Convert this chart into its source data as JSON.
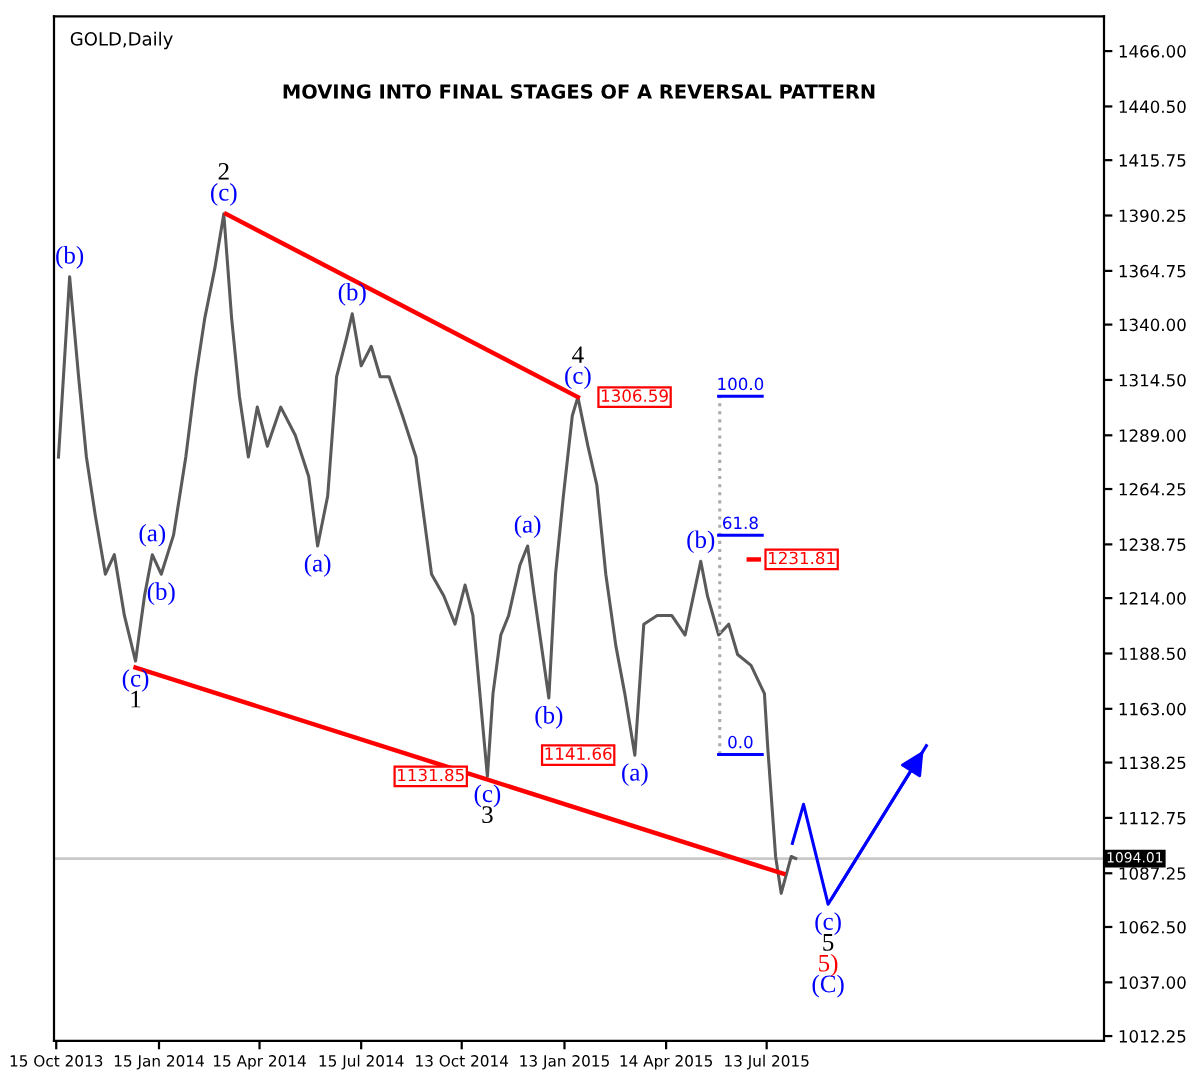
{
  "chart_data": {
    "type": "line",
    "title": "MOVING INTO FINAL STAGES OF A REVERSAL PATTERN",
    "subtitle": "GOLD,Daily",
    "xlim": [
      "2013-10-13",
      "2016-05-10"
    ],
    "ylim": [
      1010,
      1482
    ],
    "xticks": [
      {
        "value": "2013-10-15",
        "label": "15 Oct 2013"
      },
      {
        "value": "2014-01-15",
        "label": "15 Jan 2014"
      },
      {
        "value": "2014-04-15",
        "label": "15 Apr 2014"
      },
      {
        "value": "2014-07-15",
        "label": "15 Jul 2014"
      },
      {
        "value": "2014-10-13",
        "label": "13 Oct 2014"
      },
      {
        "value": "2015-01-13",
        "label": "13 Jan 2015"
      },
      {
        "value": "2015-04-14",
        "label": "14 Apr 2015"
      },
      {
        "value": "2015-07-13",
        "label": "13 Jul 2015"
      }
    ],
    "yticks": [
      {
        "value": 1466.0,
        "label": "1466.00"
      },
      {
        "value": 1440.5,
        "label": "1440.50"
      },
      {
        "value": 1415.75,
        "label": "1415.75"
      },
      {
        "value": 1390.25,
        "label": "1390.25"
      },
      {
        "value": 1364.75,
        "label": "1364.75"
      },
      {
        "value": 1340.0,
        "label": "1340.00"
      },
      {
        "value": 1314.5,
        "label": "1314.50"
      },
      {
        "value": 1289.0,
        "label": "1289.00"
      },
      {
        "value": 1264.25,
        "label": "1264.25"
      },
      {
        "value": 1238.75,
        "label": "1238.75"
      },
      {
        "value": 1214.0,
        "label": "1214.00"
      },
      {
        "value": 1188.5,
        "label": "1188.50"
      },
      {
        "value": 1163.0,
        "label": "1163.00"
      },
      {
        "value": 1138.25,
        "label": "1138.25"
      },
      {
        "value": 1112.75,
        "label": "1112.75"
      },
      {
        "value": 1087.25,
        "label": "1087.25"
      },
      {
        "value": 1062.5,
        "label": "1062.50"
      },
      {
        "value": 1037.0,
        "label": "1037.00"
      },
      {
        "value": 1012.25,
        "label": "1012.25"
      }
    ],
    "grid": false,
    "legend": false,
    "series": [
      {
        "color": "#5a5a5a",
        "x": [
          "2013-10-17",
          "2013-10-27",
          "2013-11-04",
          "2013-11-11",
          "2013-11-19",
          "2013-11-28",
          "2013-12-06",
          "2013-12-15",
          "2013-12-25",
          "2014-01-02",
          "2014-01-09",
          "2014-01-17",
          "2014-01-28",
          "2014-02-08",
          "2014-02-17",
          "2014-02-25",
          "2014-03-06",
          "2014-03-14",
          "2014-03-21",
          "2014-03-28",
          "2014-04-05",
          "2014-04-13",
          "2014-04-22",
          "2014-05-04",
          "2014-05-17",
          "2014-05-29",
          "2014-06-06",
          "2014-06-15",
          "2014-06-23",
          "2014-07-02",
          "2014-07-07",
          "2014-07-15",
          "2014-07-24",
          "2014-08-01",
          "2014-08-09",
          "2014-08-21",
          "2014-09-02",
          "2014-09-16",
          "2014-09-27",
          "2014-10-07",
          "2014-10-16",
          "2014-10-23",
          "2014-10-31",
          "2014-11-05",
          "2014-11-10",
          "2014-11-17",
          "2014-11-24",
          "2014-12-04",
          "2014-12-11",
          "2014-12-17",
          "2014-12-30",
          "2015-01-05",
          "2015-01-12",
          "2015-01-20",
          "2015-01-25",
          "2015-02-03",
          "2015-02-11",
          "2015-02-19",
          "2015-02-28",
          "2015-03-08",
          "2015-03-17",
          "2015-03-25",
          "2015-04-06",
          "2015-04-19",
          "2015-05-01",
          "2015-05-15",
          "2015-05-21",
          "2015-05-31",
          "2015-06-09",
          "2015-06-17",
          "2015-06-29",
          "2015-07-11",
          "2015-07-14",
          "2015-07-21",
          "2015-07-26",
          "2015-08-04",
          "2015-08-08"
        ],
        "values": [
          1279,
          1362,
          1316,
          1279,
          1252,
          1225,
          1234,
          1206,
          1185,
          1215,
          1234,
          1225,
          1243,
          1279,
          1316,
          1343,
          1366,
          1391,
          1343,
          1307,
          1279,
          1302,
          1284,
          1302,
          1289,
          1270,
          1238,
          1261,
          1316,
          1334,
          1345,
          1321,
          1330,
          1316,
          1316,
          1298,
          1279,
          1225,
          1215,
          1202,
          1220,
          1206,
          1160,
          1131.85,
          1170,
          1197,
          1206,
          1229,
          1238,
          1215,
          1168,
          1225,
          1261,
          1298,
          1306.59,
          1284,
          1266,
          1225,
          1192,
          1170,
          1141.66,
          1202,
          1206,
          1206,
          1197,
          1231,
          1215,
          1197,
          1202,
          1188,
          1183,
          1170,
          1145,
          1095,
          1078,
          1095,
          1094.01
        ]
      },
      {
        "color": "#ff0000",
        "x": [
          "2014-03-16",
          "2015-01-25"
        ],
        "values": [
          1391,
          1306.59
        ]
      },
      {
        "color": "#ff0000",
        "x": [
          "2013-12-25",
          "2015-07-28"
        ],
        "values": [
          1182,
          1087
        ]
      },
      {
        "color": "#0000ff",
        "x": [
          "2015-08-05",
          "2015-08-15",
          "2015-09-06",
          "2015-12-03"
        ],
        "values": [
          1101,
          1119,
          1073,
          1146
        ]
      },
      {
        "color": "#aaaaaa",
        "line_style": "dotted",
        "x": [
          "2015-06-01",
          "2015-06-01"
        ],
        "values": [
          1142,
          1307
        ]
      },
      {
        "name": "100.0",
        "color": "#0000ff",
        "x": [
          "2015-05-31",
          "2015-07-09"
        ],
        "values": [
          1307,
          1307
        ]
      },
      {
        "name": "61.8",
        "color": "#0000ff",
        "x": [
          "2015-05-31",
          "2015-07-09"
        ],
        "values": [
          1243,
          1243
        ]
      },
      {
        "name": "0.0",
        "color": "#0000ff",
        "x": [
          "2015-05-31",
          "2015-07-09"
        ],
        "values": [
          1142,
          1142
        ]
      },
      {
        "name": "1231.81",
        "color": "#ff0000",
        "x": [
          "2015-06-27",
          "2015-07-06"
        ],
        "values": [
          1231.81,
          1231.81
        ]
      }
    ],
    "ref_lines": [
      {
        "axis": "y",
        "value": 1094.01,
        "label": "1094.01",
        "color": "#c8c8c8"
      }
    ],
    "annotations": [
      {
        "text": "(b)",
        "x": "2013-10-27",
        "y": 1362
      },
      {
        "text": "(c)",
        "x": "2013-12-25",
        "y": 1185
      },
      {
        "text": "1",
        "x": "2013-12-25",
        "y": 1185
      },
      {
        "text": "(a)",
        "x": "2014-01-09",
        "y": 1234
      },
      {
        "text": "(b)",
        "x": "2014-01-17",
        "y": 1225
      },
      {
        "text": "(c)",
        "x": "2014-03-14",
        "y": 1391
      },
      {
        "text": "2",
        "x": "2014-03-14",
        "y": 1391
      },
      {
        "text": "(a)",
        "x": "2014-06-06",
        "y": 1238
      },
      {
        "text": "(b)",
        "x": "2014-07-07",
        "y": 1345
      },
      {
        "text": "(c)",
        "x": "2014-11-05",
        "y": 1131.85
      },
      {
        "text": "3",
        "x": "2014-11-05",
        "y": 1131.85
      },
      {
        "text": "1131.85",
        "x": "2014-11-05",
        "y": 1131.85
      },
      {
        "text": "(a)",
        "x": "2014-12-11",
        "y": 1238
      },
      {
        "text": "(b)",
        "x": "2014-12-30",
        "y": 1168
      },
      {
        "text": "(c)",
        "x": "2015-01-25",
        "y": 1306.59
      },
      {
        "text": "4",
        "x": "2015-01-25",
        "y": 1306.59
      },
      {
        "text": "1306.59",
        "x": "2015-01-25",
        "y": 1306.59
      },
      {
        "text": "(a)",
        "x": "2015-03-17",
        "y": 1141.66
      },
      {
        "text": "1141.66",
        "x": "2015-03-17",
        "y": 1141.66
      },
      {
        "text": "(b)",
        "x": "2015-05-15",
        "y": 1231
      },
      {
        "text": "(c)",
        "x": "2015-09-06",
        "y": 1073
      },
      {
        "text": "5",
        "x": "2015-09-06",
        "y": 1073
      },
      {
        "text": "5)",
        "x": "2015-09-06",
        "y": 1073
      },
      {
        "text": "(C)",
        "x": "2015-09-06",
        "y": 1073
      }
    ]
  }
}
